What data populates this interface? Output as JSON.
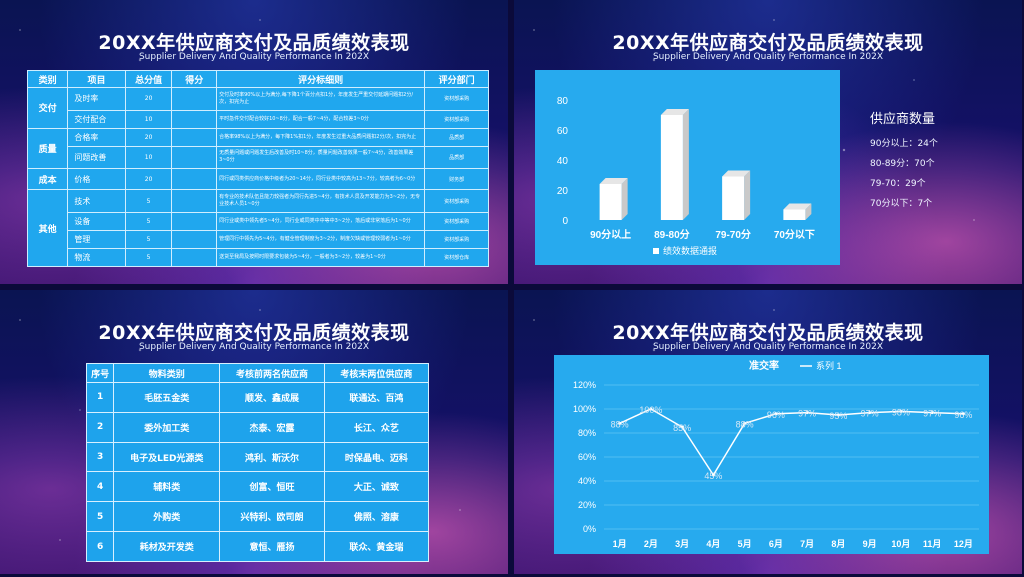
{
  "title": "20XX年供应商交付及品质绩效表现",
  "subtitle": "Supplier Delivery And Quality Performance In 202X",
  "slide1": {
    "headers": [
      "类别",
      "项目",
      "总分值",
      "得分",
      "评分标细则",
      "",
      "评分部门"
    ],
    "categories": [
      {
        "label": "交付",
        "rows": 2
      },
      {
        "label": "质量",
        "rows": 2
      },
      {
        "label": "成本",
        "rows": 1
      },
      {
        "label": "其他",
        "rows": 4
      }
    ],
    "rows": [
      {
        "item": "及时率",
        "score": "20",
        "detail": "交付及时率90%以上为满分,每下降1个百分点扣1分，年度发生严重交付延期问题扣2分/次，扣完为止",
        "dept": "资材部采购"
      },
      {
        "item": "交付配合",
        "score": "10",
        "detail": "平时急件交付配合较好10~8分，配合一般7~4分，配合较差3~0分",
        "dept": "资材部采购"
      },
      {
        "item": "合格率",
        "score": "20",
        "detail": "合格率98%以上为满分，每下降1%扣1分，年度发生过重大品质问题扣2分/次，扣完为止",
        "dept": "品质部"
      },
      {
        "item": "问题改善",
        "score": "10",
        "detail": "无质量问题或问题发生后改善及时10~8分，质量问题改善效果一般7~4分，改善效果差3~0分",
        "dept": "品质部"
      },
      {
        "item": "价格",
        "score": "20",
        "detail": "同行或同类供应商价格中级者为20~14分，同行业类中较高为13~7分，较高者为6~0分",
        "dept": "财务部"
      },
      {
        "item": "技术",
        "score": "5",
        "detail": "有专业的技术队伍且能力较强者为同行先进5~4分，有技术人员及开发能力为3~2分，无专业技术人员1~0分",
        "dept": "资材部采购"
      },
      {
        "item": "设备",
        "score": "5",
        "detail": "同行业或类中领先者5~4分，同行业或同类中中等中3~2分，落后或非常落后为1~0分",
        "dept": "资材部采购"
      },
      {
        "item": "管理",
        "score": "5",
        "detail": "管理同行中领先为5~4分，有健全管理制度为3~2分，制度欠缺或管理较弱者为1~0分",
        "dept": "资材部采购"
      },
      {
        "item": "物流",
        "score": "5",
        "detail": "送货至我局及按照时限要求包装为5~4分，一般者为3~2分，较差为1~0分",
        "dept": "资材部仓库"
      }
    ]
  },
  "slide2": {
    "legend_title": "供应商数量",
    "legend_items": [
      "90分以上：24个",
      "80-89分：70个",
      "79-70：29个",
      "70分以下：7个"
    ],
    "series_label": "绩效数据通报"
  },
  "slide3": {
    "headers": [
      "序号",
      "物料类别",
      "考核前两名供应商",
      "考核末两位供应商"
    ],
    "rows": [
      [
        "1",
        "毛胚五金类",
        "顺发、鑫成展",
        "联通达、百鸿"
      ],
      [
        "2",
        "委外加工类",
        "杰泰、宏露",
        "长江、众艺"
      ],
      [
        "3",
        "电子及LED光源类",
        "鸿利、斯沃尔",
        "时保晶电、迈科"
      ],
      [
        "4",
        "辅料类",
        "创富、恒旺",
        "大正、诚致"
      ],
      [
        "5",
        "外购类",
        "兴特利、欧司朗",
        "佛照、溶康"
      ],
      [
        "6",
        "耗材及开发类",
        "意恒、雁扬",
        "联众、黄金瑞"
      ]
    ]
  },
  "chart_data": [
    {
      "type": "bar",
      "categories": [
        "90分以上",
        "89-80分",
        "79-70分",
        "70分以下"
      ],
      "series": [
        {
          "name": "绩效数据通报",
          "values": [
            24,
            70,
            29,
            7
          ]
        }
      ],
      "ylim": [
        0,
        80
      ],
      "yticks": [
        0,
        20,
        40,
        60,
        80
      ],
      "color": "#ffffff",
      "legend": "bottom"
    },
    {
      "type": "line",
      "title": "准交率",
      "categories": [
        "1月",
        "2月",
        "3月",
        "4月",
        "5月",
        "6月",
        "7月",
        "8月",
        "9月",
        "10月",
        "11月",
        "12月"
      ],
      "series": [
        {
          "name": "系列 1",
          "values": [
            88,
            100,
            85,
            45,
            88,
            96,
            97,
            95,
            97,
            98,
            97,
            96
          ]
        }
      ],
      "data_labels": [
        "88%",
        "100%",
        "85%",
        "45%",
        "88%",
        "96%",
        "97%",
        "95%",
        "97%",
        "98%",
        "97%",
        "96%"
      ],
      "ylim": [
        0,
        120
      ],
      "yticks": [
        "0%",
        "20%",
        "40%",
        "60%",
        "80%",
        "100%",
        "120%"
      ],
      "grid": true,
      "legend": "top",
      "color": "#ffffff"
    }
  ]
}
